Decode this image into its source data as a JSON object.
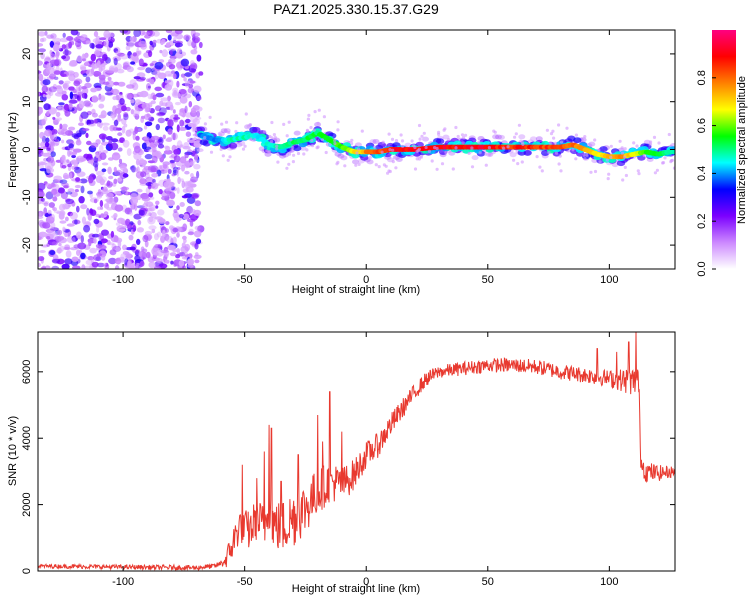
{
  "title": "PAZ1.2025.330.15.37.G29",
  "chart_data": [
    {
      "type": "heatmap",
      "name": "spectrogram",
      "xlabel": "Height of straight line (km)",
      "ylabel": "Frequency (Hz)",
      "xlim": [
        -135,
        127
      ],
      "ylim": [
        -25,
        25
      ],
      "xticks": [
        -100,
        -50,
        0,
        50,
        100
      ],
      "xtick_labels": [
        "-100",
        "-50",
        "0",
        "50",
        "100"
      ],
      "yticks": [
        -20,
        -10,
        0,
        10,
        20
      ],
      "ytick_labels": [
        "-20",
        "-10",
        "0",
        "10",
        "20"
      ],
      "noise_region": {
        "x_range": [
          -135,
          -68
        ],
        "y_range": [
          -25,
          25
        ],
        "amplitude_range": [
          0.0,
          0.15
        ]
      },
      "ridge": {
        "x": [
          -68,
          -62,
          -56,
          -50,
          -45,
          -40,
          -35,
          -30,
          -25,
          -20,
          -15,
          -10,
          -5,
          0,
          5,
          10,
          15,
          20,
          30,
          40,
          50,
          60,
          70,
          80,
          85,
          90,
          95,
          100,
          105,
          110,
          115,
          120,
          125
        ],
        "y": [
          3.0,
          2.0,
          2.0,
          2.5,
          3.0,
          1.0,
          0.5,
          1.5,
          2.0,
          3.5,
          2.0,
          0.5,
          -0.5,
          -0.5,
          -0.5,
          0.0,
          0.0,
          0.0,
          0.5,
          0.5,
          0.5,
          0.5,
          0.5,
          0.5,
          1.0,
          0.0,
          -1.0,
          -1.5,
          -1.5,
          -1.0,
          -0.5,
          -1.0,
          -0.5
        ],
        "amplitude": [
          0.4,
          0.4,
          0.5,
          0.5,
          0.45,
          0.5,
          0.5,
          0.55,
          0.55,
          0.55,
          0.6,
          0.6,
          0.7,
          0.8,
          0.85,
          0.9,
          0.95,
          0.95,
          0.95,
          0.95,
          0.95,
          0.9,
          0.9,
          0.85,
          0.85,
          0.8,
          0.7,
          0.75,
          0.8,
          0.7,
          0.6,
          0.55,
          0.5
        ]
      },
      "colorbar": {
        "label": "Normalized spectral amplitude",
        "range": [
          0,
          1
        ],
        "ticks": [
          0.0,
          0.2,
          0.4,
          0.6,
          0.8
        ],
        "tick_labels": [
          "0.0",
          "0.2",
          "0.4",
          "0.6",
          "0.8"
        ],
        "colors": [
          "#ffffff",
          "#cc88ff",
          "#7b00ff",
          "#0000ff",
          "#00ffff",
          "#00ff00",
          "#ffff00",
          "#ff8000",
          "#ff0000",
          "#ff0080"
        ]
      }
    },
    {
      "type": "line",
      "name": "snr",
      "xlabel": "Height of straight line (km)",
      "ylabel": "SNR (10 * v/v)",
      "xlim": [
        -135,
        127
      ],
      "ylim": [
        0,
        7200
      ],
      "xticks": [
        -100,
        -50,
        0,
        50,
        100
      ],
      "xtick_labels": [
        "-100",
        "-50",
        "0",
        "50",
        "100"
      ],
      "yticks": [
        0,
        2000,
        4000,
        6000
      ],
      "ytick_labels": [
        "0",
        "2000",
        "4000",
        "6000"
      ],
      "color": "#e8392f",
      "envelope": {
        "x": [
          -135,
          -100,
          -70,
          -62,
          -58,
          -55,
          -52,
          -48,
          -45,
          -42,
          -40,
          -38,
          -35,
          -30,
          -25,
          -20,
          -15,
          -10,
          -5,
          0,
          5,
          10,
          15,
          20,
          25,
          30,
          40,
          50,
          60,
          70,
          80,
          90,
          100,
          105,
          110,
          112,
          113,
          115,
          120,
          127
        ],
        "y": [
          150,
          120,
          100,
          150,
          300,
          800,
          1400,
          1200,
          1600,
          1300,
          2000,
          1400,
          1300,
          1600,
          1900,
          2400,
          2700,
          2600,
          2900,
          3500,
          3800,
          4400,
          4900,
          5400,
          5800,
          6000,
          6100,
          6200,
          6200,
          6150,
          6000,
          5900,
          5800,
          5750,
          5700,
          5800,
          3300,
          3000,
          2950,
          3000
        ]
      },
      "noise": {
        "x": [
          -135,
          -60,
          -55,
          -30,
          -20,
          0,
          10,
          20,
          30,
          100,
          110,
          113,
          127
        ],
        "amplitude": [
          60,
          80,
          500,
          900,
          700,
          400,
          350,
          250,
          200,
          250,
          450,
          350,
          150
        ]
      },
      "spikes": {
        "x": [
          -51,
          -45,
          -42,
          -40,
          -39,
          -35,
          -28,
          -20,
          -18,
          -15,
          -10,
          95,
          103,
          108,
          111
        ],
        "y": [
          3200,
          2800,
          3600,
          4400,
          4300,
          2700,
          3500,
          4700,
          3900,
          5400,
          4200,
          6700,
          6600,
          6900,
          7200
        ]
      }
    }
  ]
}
